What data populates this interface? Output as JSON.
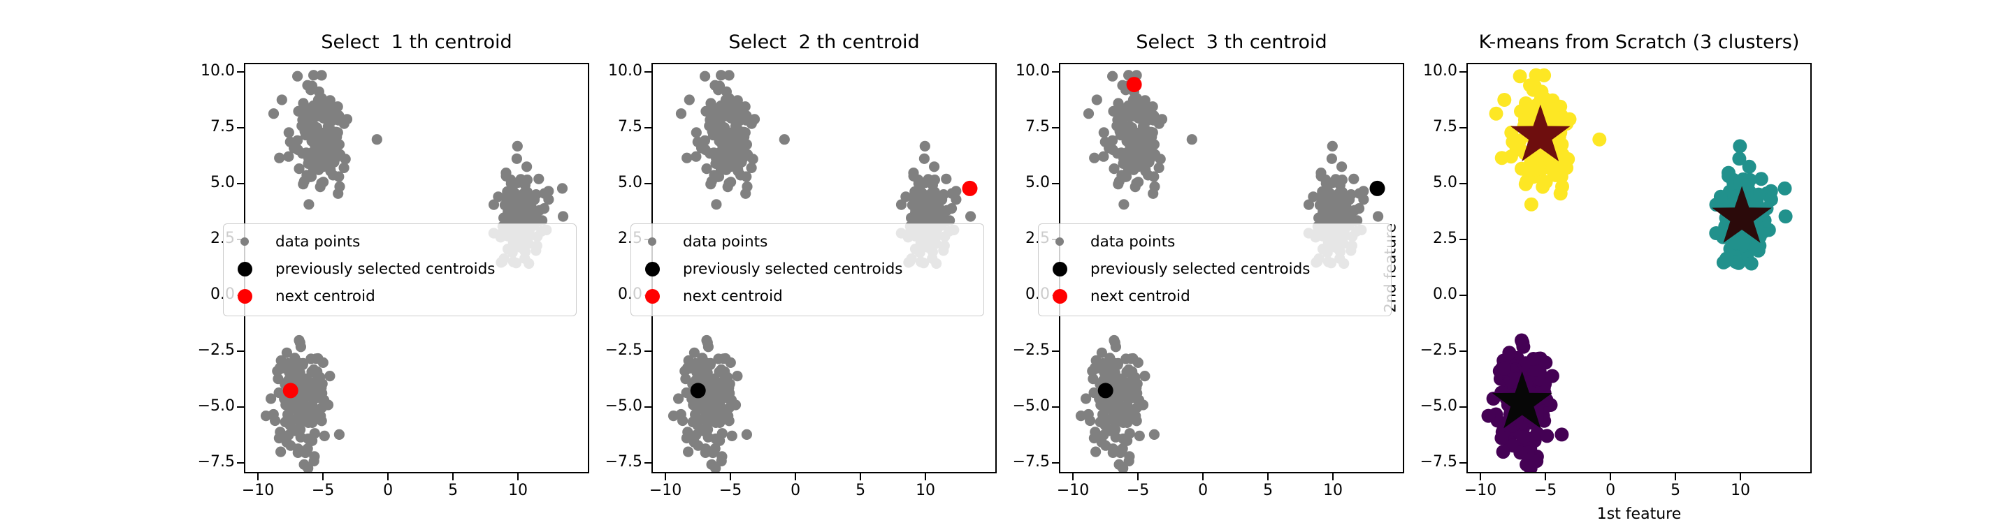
{
  "figure": {
    "background": "#ffffff",
    "kind": "matplotlib scatter figure, 1 row x 4 columns"
  },
  "axes": {
    "xlim": [
      -11.08,
      15.48
    ],
    "ylim": [
      -7.97,
      10.41
    ],
    "xticks": [
      -10,
      -5,
      0,
      5,
      10
    ],
    "xtick_labels": [
      "−10",
      "−5",
      "0",
      "5",
      "10"
    ],
    "yticks": [
      10.0,
      7.5,
      5.0,
      2.5,
      0.0,
      -2.5,
      -5.0,
      -7.5
    ],
    "ytick_labels": [
      "10.0",
      "7.5",
      "5.0",
      "2.5",
      "0.0",
      "−2.5",
      "−5.0",
      "−7.5"
    ],
    "grid": false
  },
  "subplots": [
    {
      "title": "Select  1 th centroid",
      "has_legend": true,
      "mode": "gray",
      "previous_centroids": [],
      "next_centroid": [
        -7.6,
        -4.2
      ]
    },
    {
      "title": "Select  2 th centroid",
      "has_legend": true,
      "mode": "gray",
      "previous_centroids": [
        [
          -7.6,
          -4.2
        ]
      ],
      "next_centroid": [
        13.3,
        4.85
      ]
    },
    {
      "title": "Select  3 th centroid",
      "has_legend": true,
      "mode": "gray",
      "previous_centroids": [
        [
          -7.6,
          -4.2
        ],
        [
          13.3,
          4.85
        ]
      ],
      "next_centroid": [
        -5.4,
        9.5
      ]
    },
    {
      "title": "K-means from Scratch (3 clusters)",
      "has_legend": false,
      "mode": "clusters",
      "xlabel": "1st feature",
      "ylabel": "2nd feature",
      "stars": [
        [
          -5.5,
          7.2
        ],
        [
          10.0,
          3.55
        ],
        [
          -6.9,
          -4.75
        ]
      ]
    }
  ],
  "legend": {
    "entries": [
      {
        "label": "data points",
        "marker": "dot-small",
        "color": "#808080"
      },
      {
        "label": "previously selected centroids",
        "marker": "dot-large",
        "color": "#000000"
      },
      {
        "label": "next centroid",
        "marker": "dot-large",
        "color": "#ff0000"
      }
    ]
  },
  "colors": {
    "data_gray": "#808080",
    "next_centroid_red": "#ff0000",
    "prev_centroid_black": "#000000",
    "cluster_yellow": "#fde724",
    "cluster_teal": "#21918c",
    "cluster_purple": "#440154",
    "star_on_yellow": "#6e0e0e",
    "star_on_teal": "#2b0a0a",
    "star_on_purple": "#070707",
    "legend_border": "#cccccc"
  },
  "chart_data": {
    "type": "scatter",
    "panels": [
      {
        "title": "Select  1 th centroid",
        "points": "3 gray gaussian blobs (~450 pts)",
        "next_centroid": [
          -7.6,
          -4.2
        ],
        "previously_selected": []
      },
      {
        "title": "Select  2 th centroid",
        "points": "3 gray gaussian blobs (~450 pts)",
        "next_centroid": [
          13.3,
          4.85
        ],
        "previously_selected": [
          [
            -7.6,
            -4.2
          ]
        ]
      },
      {
        "title": "Select  3 th centroid",
        "points": "3 gray gaussian blobs (~450 pts)",
        "next_centroid": [
          -5.4,
          9.5
        ],
        "previously_selected": [
          [
            -7.6,
            -4.2
          ],
          [
            13.3,
            4.85
          ]
        ]
      },
      {
        "title": "K-means from Scratch (3 clusters)",
        "final_centroids": [
          [
            -5.5,
            7.2
          ],
          [
            10.0,
            3.55
          ],
          [
            -6.9,
            -4.75
          ]
        ],
        "xlabel": "1st feature",
        "ylabel": "2nd feature"
      }
    ],
    "clusters": [
      {
        "name": "top-left blob",
        "center": [
          -5.5,
          7.2
        ],
        "stddev": [
          1.05,
          1.15
        ],
        "n_points": 150,
        "panel4_color": "#fde724"
      },
      {
        "name": "right blob",
        "center": [
          10.0,
          3.55
        ],
        "stddev": [
          0.95,
          1.05
        ],
        "n_points": 150,
        "panel4_color": "#21918c"
      },
      {
        "name": "bottom-left blob",
        "center": [
          -6.9,
          -4.75
        ],
        "stddev": [
          1.1,
          1.2
        ],
        "n_points": 150,
        "panel4_color": "#440154"
      }
    ],
    "outlier_points": [
      {
        "xy": [
          -8.9,
          8.2
        ],
        "cluster": 0
      },
      {
        "xy": [
          13.3,
          4.85
        ],
        "cluster": 1
      },
      {
        "xy": [
          10.45,
          5.0
        ],
        "cluster": 1
      }
    ],
    "legend_entries": [
      "data points",
      "previously selected centroids",
      "next centroid"
    ],
    "xlim": [
      -11.08,
      15.48
    ],
    "ylim": [
      -7.97,
      10.41
    ],
    "xticks": [
      -10,
      -5,
      0,
      5,
      10
    ],
    "yticks": [
      10.0,
      7.5,
      5.0,
      2.5,
      0.0,
      -2.5,
      -5.0,
      -7.5
    ],
    "grid": false,
    "legend_position": "center left of panels 1-3"
  }
}
